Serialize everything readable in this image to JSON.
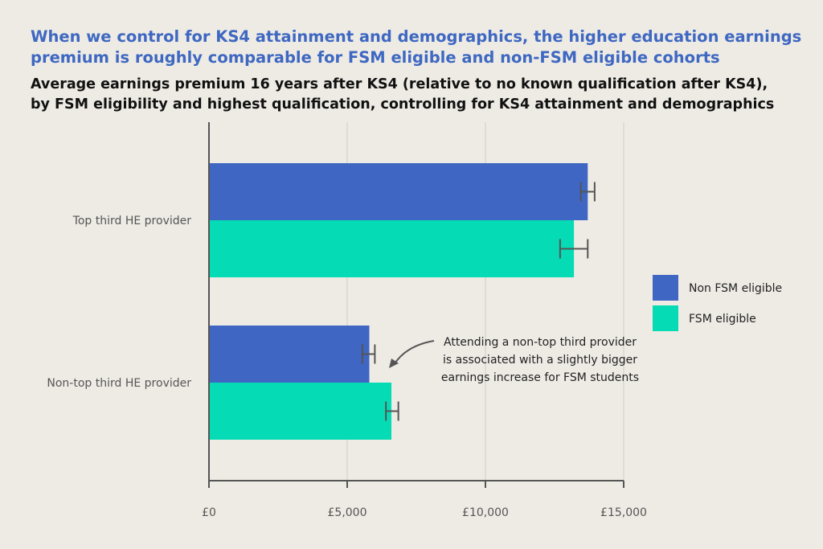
{
  "headline": {
    "line1": "When we control for KS4 attainment and demographics, the higher education earnings",
    "line2": "premium is roughly comparable for FSM eligible and non-FSM eligible cohorts"
  },
  "chart_data": {
    "type": "bar",
    "orientation": "horizontal",
    "title": "Average earnings premium 16 years after KS4 (relative to no known qualification after KS4),",
    "subtitle": "by FSM eligibility and highest qualification, controlling for KS4 attainment and demographics",
    "categories": [
      "Top third HE provider",
      "Non-top third HE provider"
    ],
    "series": [
      {
        "name": "Non FSM eligible",
        "color": "#3e66c2",
        "values": [
          13700,
          5800
        ],
        "error_low": [
          13450,
          5550
        ],
        "error_high": [
          13950,
          6000
        ]
      },
      {
        "name": "FSM eligible",
        "color": "#05dbb4",
        "values": [
          13200,
          6600
        ],
        "error_low": [
          12700,
          6400
        ],
        "error_high": [
          13700,
          6850
        ]
      }
    ],
    "xlim": [
      0,
      15000
    ],
    "x_ticks": [
      0,
      5000,
      10000,
      15000
    ],
    "x_tick_labels": [
      "£0",
      "£5,000",
      "£10,000",
      "£15,000"
    ],
    "xlabel": "",
    "ylabel": "",
    "grid": "vertical",
    "legend": "right",
    "annotation": {
      "lines": [
        "Attending a non-top third provider",
        "is associated with a slightly bigger",
        "earnings increase for FSM students"
      ],
      "points_to": {
        "category": "Non-top third HE provider",
        "series": "Non FSM eligible"
      }
    }
  }
}
